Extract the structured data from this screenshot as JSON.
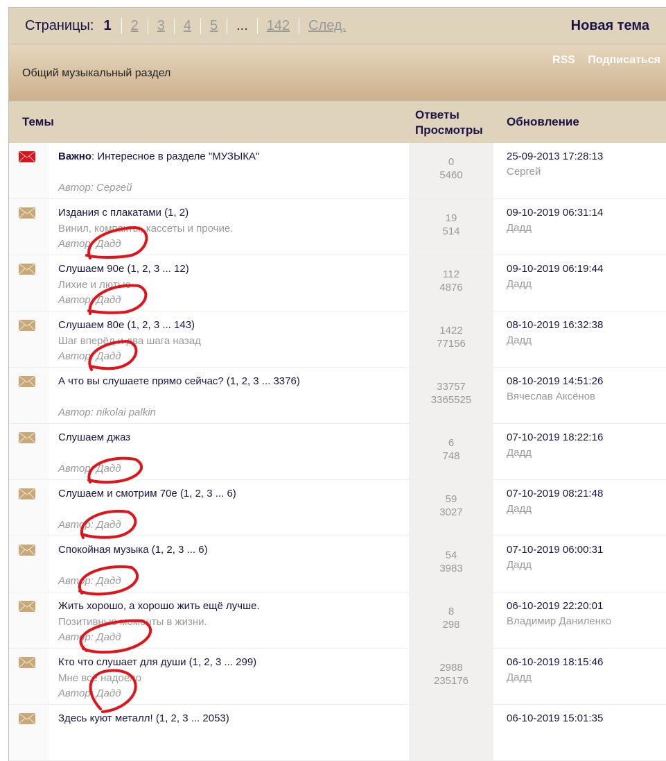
{
  "pager": {
    "label": "Страницы:",
    "current": "1",
    "pages": [
      "2",
      "3",
      "4",
      "5"
    ],
    "dots": "...",
    "last": "142",
    "next": "След.",
    "new_topic": "Новая тема"
  },
  "section": {
    "name": "Общий музыкальный раздел",
    "rss": "RSS",
    "subscribe": "Подписаться"
  },
  "header": {
    "topics": "Темы",
    "replies": "Ответы",
    "views": "Просмотры",
    "updated": "Обновление"
  },
  "colors": {
    "important_icon": "#d9141a",
    "topic_icon": "#c9a878",
    "header_bg": "#e0d3bc",
    "text": "#1a1446",
    "annotation": "#e0141a"
  },
  "topics": [
    {
      "prefix": "Важно",
      "title": ": Интересное в разделе \"МУЗЫКА\"",
      "desc": "",
      "author": "Автор: Сергей",
      "replies": "0",
      "views": "5460",
      "date": "25-09-2013 17:28:13",
      "last": "Сергей",
      "important": true
    },
    {
      "prefix": "",
      "title": "Издания с плакатами (1, 2)",
      "desc": "Винил, компакты, кассеты и прочие.",
      "author": "Автор: Дадд",
      "replies": "19",
      "views": "514",
      "date": "09-10-2019 06:31:14",
      "last": "Дадд"
    },
    {
      "prefix": "",
      "title": "Слушаем 90е (1, 2, 3 ... 12)",
      "desc": "Лихие и лютые",
      "author": "Автор: Дадд",
      "replies": "112",
      "views": "4876",
      "date": "09-10-2019 06:19:44",
      "last": "Дадд"
    },
    {
      "prefix": "",
      "title": "Слушаем 80е (1, 2, 3 ... 143)",
      "desc": "Шаг вперёд и два шага назад",
      "author": "Автор: Дадд",
      "replies": "1422",
      "views": "77156",
      "date": "08-10-2019 16:32:38",
      "last": "Дадд"
    },
    {
      "prefix": "",
      "title": "А что вы слушаете прямо сейчас? (1, 2, 3 ... 3376)",
      "desc": "",
      "author": "Автор: nikolai palkin",
      "replies": "33757",
      "views": "3365525",
      "date": "08-10-2019 14:51:26",
      "last": "Вячеслав Аксёнов"
    },
    {
      "prefix": "",
      "title": "Слушаем джаз",
      "desc": "",
      "author": "Автор: Дадд",
      "replies": "6",
      "views": "748",
      "date": "07-10-2019 18:22:16",
      "last": "Дадд"
    },
    {
      "prefix": "",
      "title": "Слушаем и смотрим 70е (1, 2, 3 ... 6)",
      "desc": "",
      "author": "Автор: Дадд",
      "replies": "59",
      "views": "3027",
      "date": "07-10-2019 08:21:48",
      "last": "Дадд"
    },
    {
      "prefix": "",
      "title": "Спокойная музыка (1, 2, 3 ... 6)",
      "desc": "",
      "author": "Автор: Дадд",
      "replies": "54",
      "views": "3983",
      "date": "07-10-2019 06:00:31",
      "last": "Дадд"
    },
    {
      "prefix": "",
      "title": "Жить хорошо, а хорошо жить ещё лучше.",
      "desc": "Позитивные моменты в жизни.",
      "author": "Автор: Дадд",
      "replies": "8",
      "views": "298",
      "date": "06-10-2019 22:20:01",
      "last": "Владимир Даниленко"
    },
    {
      "prefix": "",
      "title": "Кто что слушает для души (1, 2, 3 ... 299)",
      "desc": "Мне всё надоело",
      "author": "Автор: Дадд",
      "replies": "2988",
      "views": "235176",
      "date": "06-10-2019 18:15:46",
      "last": "Дадд"
    },
    {
      "prefix": "",
      "title": "Здесь куют металл! (1, 2, 3 ... 2053)",
      "desc": "",
      "author": "",
      "replies": "",
      "views": "",
      "date": "06-10-2019 15:01:35",
      "last": ""
    }
  ]
}
